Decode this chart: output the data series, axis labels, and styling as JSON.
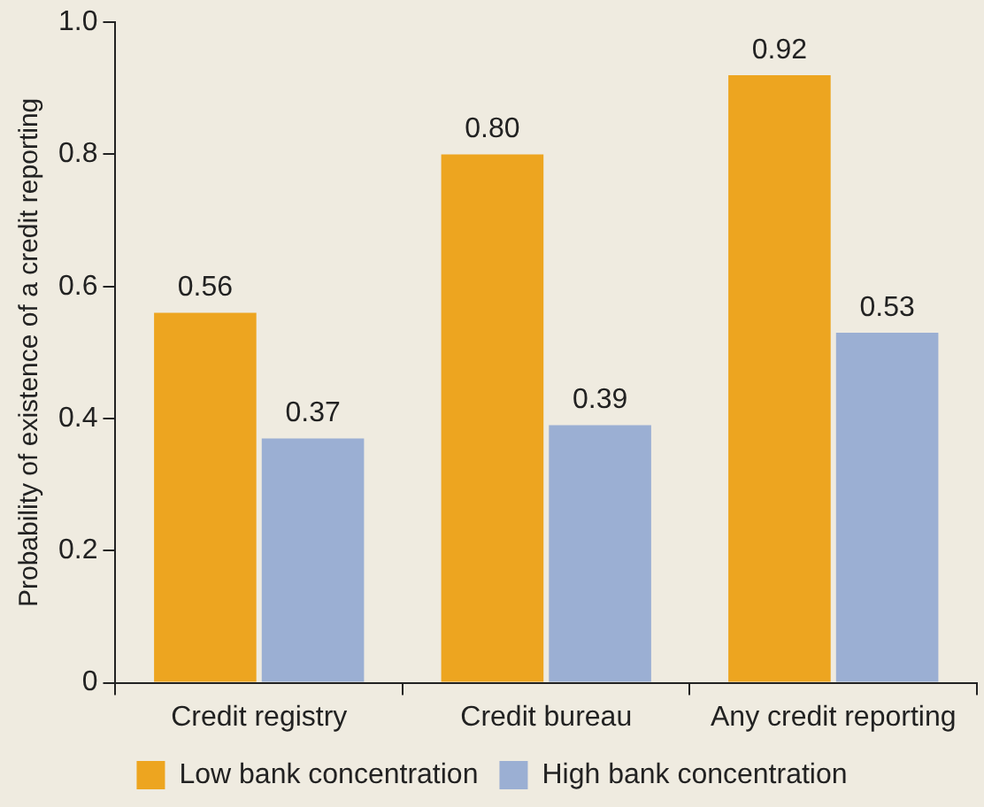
{
  "chart_data": {
    "type": "bar",
    "ylabel": "Probability of existence of a credit reporting",
    "categories": [
      "Credit registry",
      "Credit bureau",
      "Any credit reporting"
    ],
    "series": [
      {
        "name": "Low bank concentration",
        "color": "#eda520",
        "values": [
          0.56,
          0.8,
          0.92
        ],
        "value_labels": [
          "0.56",
          "0.80",
          "0.92"
        ]
      },
      {
        "name": "High bank concentration",
        "color": "#9bafd3",
        "values": [
          0.37,
          0.39,
          0.53
        ],
        "value_labels": [
          "0.37",
          "0.39",
          "0.53"
        ]
      }
    ],
    "ylim": [
      0,
      1
    ],
    "yticks": [
      0,
      0.2,
      0.4,
      0.6,
      0.8,
      {
        "value": 1,
        "label": "1.0"
      }
    ],
    "grid": false,
    "legend": "bottom"
  }
}
